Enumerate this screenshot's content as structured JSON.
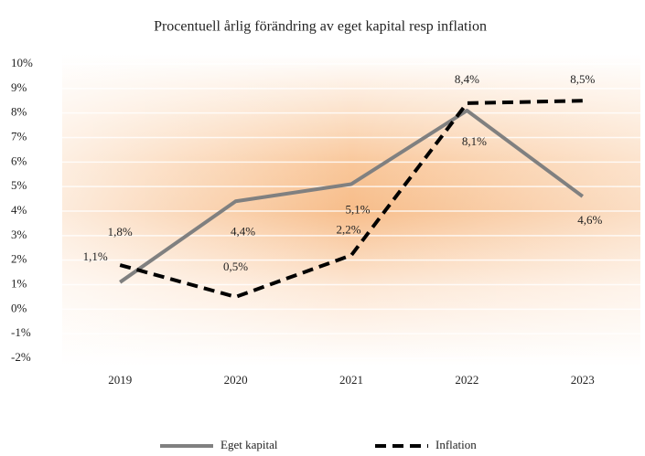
{
  "chart_data": {
    "type": "line",
    "title": "Procentuell årlig förändring av eget kapital resp inflation",
    "categories": [
      "2019",
      "2020",
      "2021",
      "2022",
      "2023"
    ],
    "series": [
      {
        "name": "Eget kapital",
        "color": "#808080",
        "dash": false,
        "values": [
          1.1,
          4.4,
          5.1,
          8.1,
          4.6
        ],
        "value_labels": [
          "1,1%",
          "4,4%",
          "5,1%",
          "8,1%",
          "4,6%"
        ]
      },
      {
        "name": "Inflation",
        "color": "#000000",
        "dash": true,
        "values": [
          1.8,
          0.5,
          2.2,
          8.4,
          8.5
        ],
        "value_labels": [
          "1,8%",
          "0,5%",
          "2,2%",
          "8,4%",
          "8,5%"
        ]
      }
    ],
    "ylim": [
      -2,
      10
    ],
    "yticks": [
      {
        "value": -2,
        "label": "-2%"
      },
      {
        "value": -1,
        "label": "-1%"
      },
      {
        "value": 0,
        "label": "0%"
      },
      {
        "value": 1,
        "label": "1%"
      },
      {
        "value": 2,
        "label": "2%"
      },
      {
        "value": 3,
        "label": "3%"
      },
      {
        "value": 4,
        "label": "4%"
      },
      {
        "value": 5,
        "label": "5%"
      },
      {
        "value": 6,
        "label": "6%"
      },
      {
        "value": 7,
        "label": "7%"
      },
      {
        "value": 8,
        "label": "8%"
      },
      {
        "value": 9,
        "label": "9%"
      },
      {
        "value": 10,
        "label": "10%"
      }
    ],
    "grid": true,
    "legend": "bottom"
  }
}
